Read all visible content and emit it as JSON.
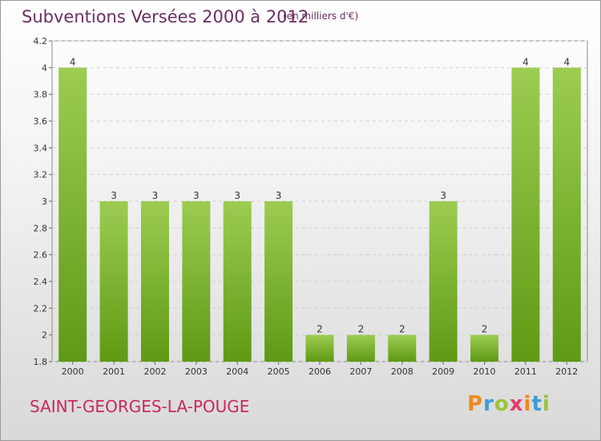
{
  "header": {
    "title": "Subventions Versées 2000 à 2012",
    "subtitle": "(en milliers d'€)"
  },
  "footer": {
    "commune": "SAINT-GEORGES-LA-POUGE",
    "logo": "Proxiti"
  },
  "colors": {
    "bar_top": "#9ccc52",
    "bar_bottom": "#5e9a14",
    "title": "#6b2e63",
    "commune": "#c8285a"
  },
  "chart_data": {
    "type": "bar",
    "title": "Subventions Versées 2000 à 2012",
    "xlabel": "",
    "ylabel": "",
    "categories": [
      "2000",
      "2001",
      "2002",
      "2003",
      "2004",
      "2005",
      "2006",
      "2007",
      "2008",
      "2009",
      "2010",
      "2011",
      "2012"
    ],
    "values": [
      4,
      3,
      3,
      3,
      3,
      3,
      2,
      2,
      2,
      3,
      2,
      4,
      4
    ],
    "ylim": [
      1.8,
      4.2
    ],
    "yticks": [
      "1.8",
      "2",
      "2.2",
      "2.4",
      "2.6",
      "2.8",
      "3",
      "3.2",
      "3.4",
      "3.6",
      "3.8",
      "4",
      "4.2"
    ],
    "grid": true
  }
}
